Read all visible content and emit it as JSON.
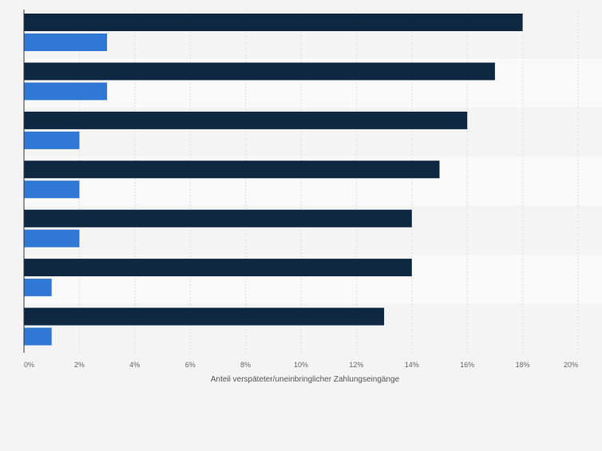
{
  "chart_data": {
    "type": "bar",
    "orientation": "horizontal",
    "categories": [
      "",
      "",
      "",
      "",
      "",
      "",
      ""
    ],
    "series": [
      {
        "values": [
          18,
          17,
          16,
          15,
          14,
          14,
          13
        ],
        "color": "#0f2842"
      },
      {
        "values": [
          3,
          3,
          2,
          2,
          2,
          1,
          1
        ],
        "color": "#2f78d6"
      }
    ],
    "title": "",
    "xlabel": "Anteil verspäteter/uneinbringlicher Zahlungseingänge",
    "ylabel": "",
    "xlim": [
      0,
      20
    ],
    "xticks": [
      "0%",
      "2%",
      "4%",
      "6%",
      "8%",
      "10%",
      "12%",
      "14%",
      "16%",
      "18%",
      "20%"
    ],
    "grid": "vertical",
    "legend": "none",
    "band_colors": [
      "#f4f4f4",
      "#fafafa"
    ]
  }
}
